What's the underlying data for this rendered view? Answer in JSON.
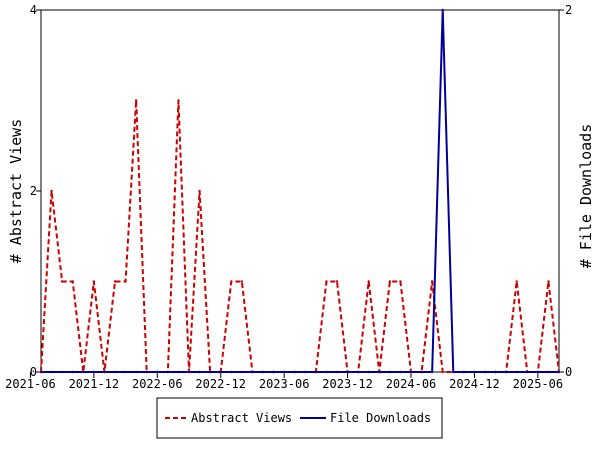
{
  "chart_data": {
    "type": "line",
    "x_ticks": [
      "2021-06",
      "2021-12",
      "2022-06",
      "2022-12",
      "2023-06",
      "2023-12",
      "2024-06",
      "2024-12",
      "2025-06"
    ],
    "x_start": "2021-07",
    "x_end": "2025-08",
    "y_left": {
      "label": "# Abstract Views",
      "ylim": [
        0,
        4
      ],
      "ticks": [
        0,
        2,
        4
      ]
    },
    "y_right": {
      "label": "# File Downloads",
      "ylim": [
        0,
        2
      ],
      "ticks": [
        0,
        2
      ]
    },
    "grid": false,
    "legend_placement": "bottom-center",
    "series": [
      {
        "name": "Abstract Views",
        "axis": "left",
        "color": "#cc0000",
        "dash": "dashed",
        "x": [
          "2021-07",
          "2021-08",
          "2021-09",
          "2021-10",
          "2021-11",
          "2021-12",
          "2022-01",
          "2022-02",
          "2022-03",
          "2022-04",
          "2022-05",
          "2022-06",
          "2022-07",
          "2022-08",
          "2022-09",
          "2022-10",
          "2022-11",
          "2022-12",
          "2023-01",
          "2023-02",
          "2023-03",
          "2023-04",
          "2023-05",
          "2023-06",
          "2023-07",
          "2023-08",
          "2023-09",
          "2023-10",
          "2023-11",
          "2023-12",
          "2024-01",
          "2024-02",
          "2024-03",
          "2024-04",
          "2024-05",
          "2024-06",
          "2024-07",
          "2024-08",
          "2024-09",
          "2024-10",
          "2024-11",
          "2024-12",
          "2025-01",
          "2025-02",
          "2025-03",
          "2025-04",
          "2025-05",
          "2025-06",
          "2025-07",
          "2025-08"
        ],
        "values": [
          0,
          2,
          1,
          1,
          0,
          1,
          0,
          1,
          1,
          3,
          0,
          0,
          0,
          3,
          0,
          2,
          0,
          0,
          1,
          1,
          0,
          0,
          0,
          0,
          0,
          0,
          0,
          1,
          1,
          0,
          0,
          1,
          0,
          1,
          1,
          0,
          0,
          1,
          0,
          0,
          0,
          0,
          0,
          0,
          0,
          1,
          0,
          0,
          1,
          0
        ]
      },
      {
        "name": "File Downloads",
        "axis": "right",
        "color": "#000099",
        "dash": "solid",
        "x": [
          "2021-07",
          "2021-08",
          "2021-09",
          "2021-10",
          "2021-11",
          "2021-12",
          "2022-01",
          "2022-02",
          "2022-03",
          "2022-04",
          "2022-05",
          "2022-06",
          "2022-07",
          "2022-08",
          "2022-09",
          "2022-10",
          "2022-11",
          "2022-12",
          "2023-01",
          "2023-02",
          "2023-03",
          "2023-04",
          "2023-05",
          "2023-06",
          "2023-07",
          "2023-08",
          "2023-09",
          "2023-10",
          "2023-11",
          "2023-12",
          "2024-01",
          "2024-02",
          "2024-03",
          "2024-04",
          "2024-05",
          "2024-06",
          "2024-07",
          "2024-08",
          "2024-09",
          "2024-10",
          "2024-11",
          "2024-12",
          "2025-01",
          "2025-02",
          "2025-03",
          "2025-04",
          "2025-05",
          "2025-06",
          "2025-07",
          "2025-08"
        ],
        "values": [
          0,
          0,
          0,
          0,
          0,
          0,
          0,
          0,
          0,
          0,
          0,
          0,
          0,
          0,
          0,
          0,
          0,
          0,
          0,
          0,
          0,
          0,
          0,
          0,
          0,
          0,
          0,
          0,
          0,
          0,
          0,
          0,
          0,
          0,
          0,
          0,
          0,
          0,
          2,
          0,
          0,
          0,
          0,
          0,
          0,
          0,
          0,
          0,
          0,
          0
        ]
      }
    ]
  }
}
